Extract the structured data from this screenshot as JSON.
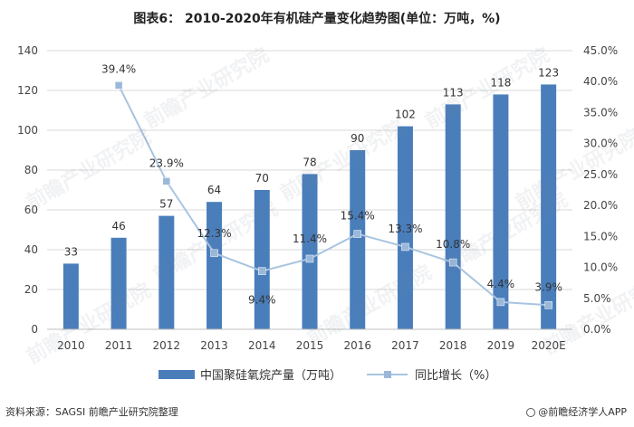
{
  "chart_data": {
    "type": "bar",
    "title": "图表6： 2010-2020年有机硅产量变化趋势图(单位：万吨，%)",
    "categories": [
      "2010",
      "2011",
      "2012",
      "2013",
      "2014",
      "2015",
      "2016",
      "2017",
      "2018",
      "2019",
      "2020E"
    ],
    "series": [
      {
        "name": "中国聚硅氧烷产量（万吨）",
        "type": "bar",
        "axis": "left",
        "values": [
          33,
          46,
          57,
          64,
          70,
          78,
          90,
          102,
          113,
          118,
          123
        ],
        "labels": [
          "33",
          "46",
          "57",
          "64",
          "70",
          "78",
          "90",
          "102",
          "113",
          "118",
          "123"
        ]
      },
      {
        "name": "同比增长（%）",
        "type": "line",
        "axis": "right",
        "values": [
          null,
          39.4,
          23.9,
          12.3,
          9.4,
          11.4,
          15.4,
          13.3,
          10.8,
          4.4,
          3.9
        ],
        "labels": [
          "",
          "39.4%",
          "23.9%",
          "12.3%",
          "9.4%",
          "11.4%",
          "15.4%",
          "13.3%",
          "10.8%",
          "4.4%",
          "3.9%"
        ]
      }
    ],
    "ylim_left": [
      0,
      140
    ],
    "yticks_left": [
      "0",
      "20",
      "40",
      "60",
      "80",
      "100",
      "120",
      "140"
    ],
    "ylim_right": [
      0,
      45
    ],
    "yticks_right": [
      "0.0%",
      "5.0%",
      "10.0%",
      "15.0%",
      "20.0%",
      "25.0%",
      "30.0%",
      "35.0%",
      "40.0%",
      "45.0%"
    ],
    "grid": true,
    "legend": "bottom",
    "colors": {
      "bar": "#4a7ebb",
      "line": "#a8c4e0",
      "marker": "#9ab8d9"
    }
  },
  "footer": {
    "source": "资料来源：SAGSI 前瞻产业研究院整理",
    "brand": "@前瞻经济学人APP"
  },
  "watermark": "前瞻产业研究院"
}
